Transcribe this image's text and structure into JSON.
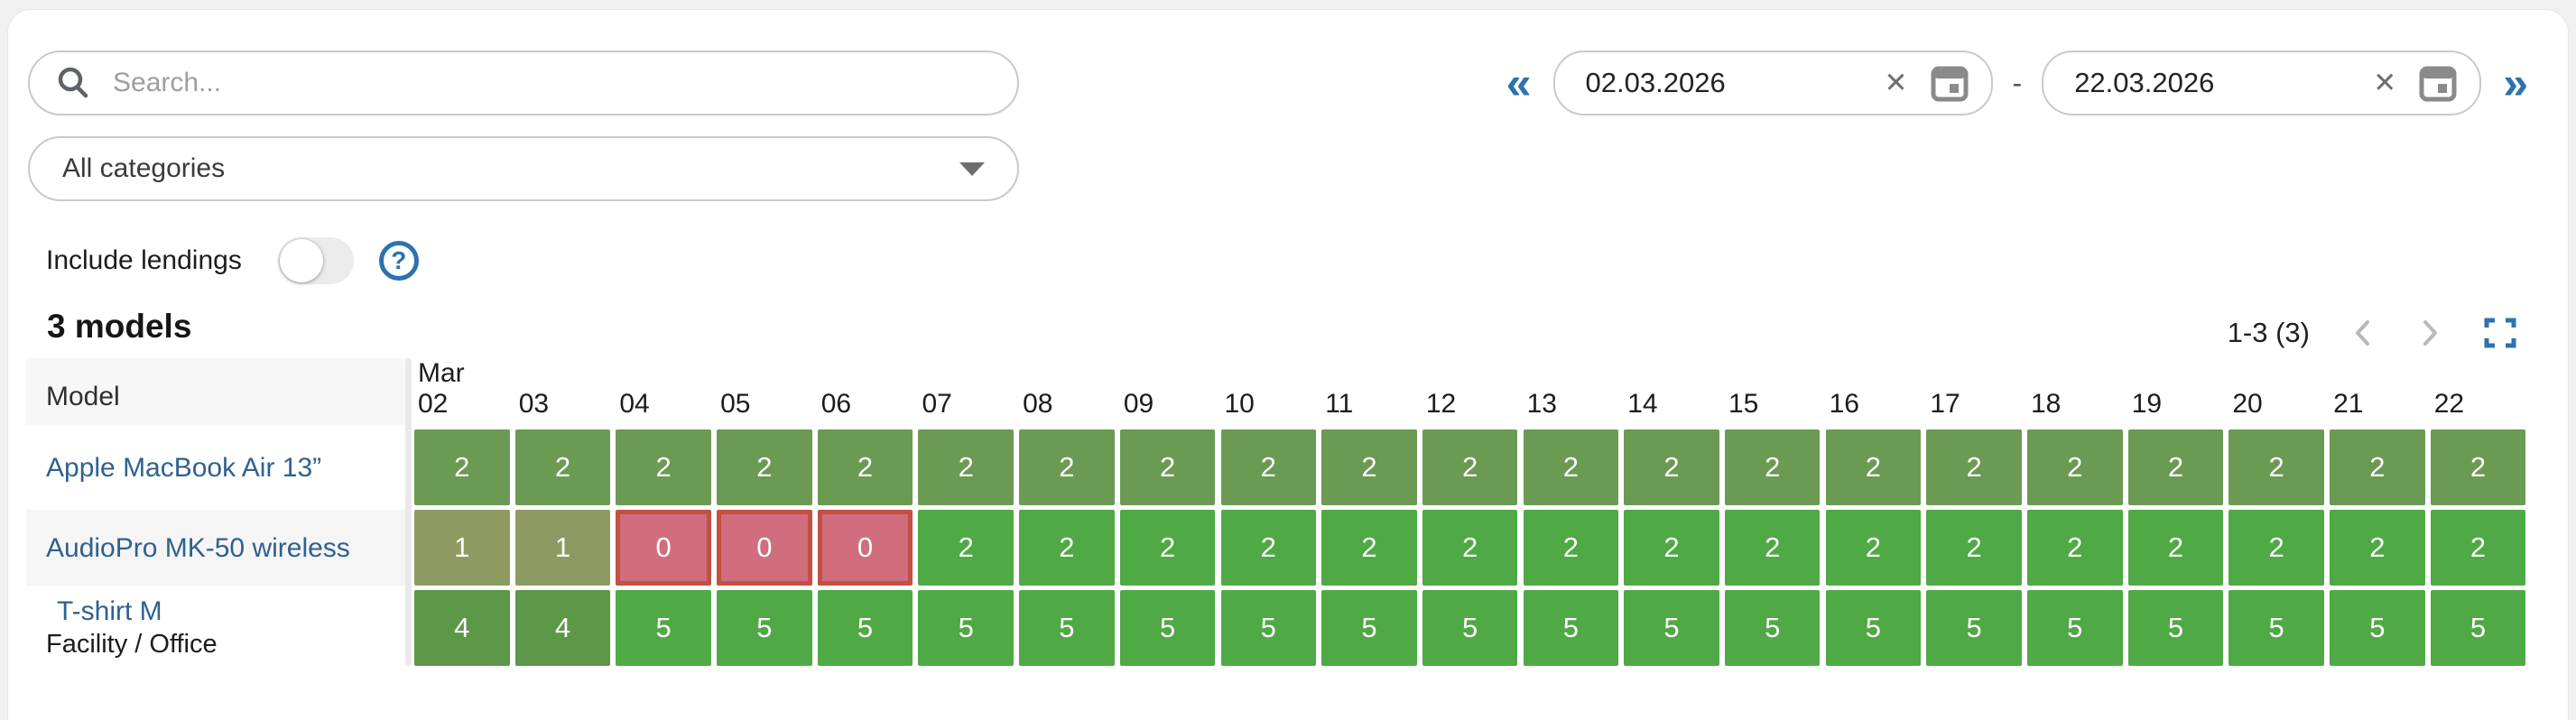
{
  "search": {
    "placeholder": "Search..."
  },
  "date_range": {
    "prev_label": "«",
    "next_label": "»",
    "separator": "-",
    "start": {
      "value": "02.03.2026",
      "clear_icon": "✕"
    },
    "end": {
      "value": "22.03.2026",
      "clear_icon": "✕"
    }
  },
  "category_filter": {
    "value": "All categories"
  },
  "lendings": {
    "label": "Include lendings",
    "toggle_state": "off",
    "help_icon": "?"
  },
  "summary": {
    "count_label": "3 models"
  },
  "pagination": {
    "range_label": "1-3 (3)"
  },
  "colors": {
    "accent_blue": "#2d72ad",
    "link_blue": "#2e618f",
    "cell_full": "#4fa945",
    "cell_high": "#5d9748",
    "cell_mid": "#6b9a53",
    "cell_low": "#8d9b63",
    "cell_zero_bg": "#d06e7e",
    "cell_zero_border": "#c25043"
  },
  "table": {
    "model_column_header": "Model",
    "month_label": "Mar",
    "days": [
      "02",
      "03",
      "04",
      "05",
      "06",
      "07",
      "08",
      "09",
      "10",
      "11",
      "12",
      "13",
      "14",
      "15",
      "16",
      "17",
      "18",
      "19",
      "20",
      "21",
      "22"
    ],
    "rows": [
      {
        "name": "Apple MacBook Air 13”",
        "category": "",
        "cells": [
          {
            "value": "2",
            "level": "mid"
          },
          {
            "value": "2",
            "level": "mid"
          },
          {
            "value": "2",
            "level": "mid"
          },
          {
            "value": "2",
            "level": "mid"
          },
          {
            "value": "2",
            "level": "mid"
          },
          {
            "value": "2",
            "level": "mid"
          },
          {
            "value": "2",
            "level": "mid"
          },
          {
            "value": "2",
            "level": "mid"
          },
          {
            "value": "2",
            "level": "mid"
          },
          {
            "value": "2",
            "level": "mid"
          },
          {
            "value": "2",
            "level": "mid"
          },
          {
            "value": "2",
            "level": "mid"
          },
          {
            "value": "2",
            "level": "mid"
          },
          {
            "value": "2",
            "level": "mid"
          },
          {
            "value": "2",
            "level": "mid"
          },
          {
            "value": "2",
            "level": "mid"
          },
          {
            "value": "2",
            "level": "mid"
          },
          {
            "value": "2",
            "level": "mid"
          },
          {
            "value": "2",
            "level": "mid"
          },
          {
            "value": "2",
            "level": "mid"
          },
          {
            "value": "2",
            "level": "mid"
          }
        ]
      },
      {
        "name": "AudioPro MK-50 wireless",
        "category": "",
        "cells": [
          {
            "value": "1",
            "level": "low"
          },
          {
            "value": "1",
            "level": "low"
          },
          {
            "value": "0",
            "level": "zero"
          },
          {
            "value": "0",
            "level": "zero"
          },
          {
            "value": "0",
            "level": "zero"
          },
          {
            "value": "2",
            "level": "full"
          },
          {
            "value": "2",
            "level": "full"
          },
          {
            "value": "2",
            "level": "full"
          },
          {
            "value": "2",
            "level": "full"
          },
          {
            "value": "2",
            "level": "full"
          },
          {
            "value": "2",
            "level": "full"
          },
          {
            "value": "2",
            "level": "full"
          },
          {
            "value": "2",
            "level": "full"
          },
          {
            "value": "2",
            "level": "full"
          },
          {
            "value": "2",
            "level": "full"
          },
          {
            "value": "2",
            "level": "full"
          },
          {
            "value": "2",
            "level": "full"
          },
          {
            "value": "2",
            "level": "full"
          },
          {
            "value": "2",
            "level": "full"
          },
          {
            "value": "2",
            "level": "full"
          },
          {
            "value": "2",
            "level": "full"
          }
        ]
      },
      {
        "name": "T-shirt M",
        "category": "Facility / Office",
        "cells": [
          {
            "value": "4",
            "level": "high"
          },
          {
            "value": "4",
            "level": "high"
          },
          {
            "value": "5",
            "level": "full"
          },
          {
            "value": "5",
            "level": "full"
          },
          {
            "value": "5",
            "level": "full"
          },
          {
            "value": "5",
            "level": "full"
          },
          {
            "value": "5",
            "level": "full"
          },
          {
            "value": "5",
            "level": "full"
          },
          {
            "value": "5",
            "level": "full"
          },
          {
            "value": "5",
            "level": "full"
          },
          {
            "value": "5",
            "level": "full"
          },
          {
            "value": "5",
            "level": "full"
          },
          {
            "value": "5",
            "level": "full"
          },
          {
            "value": "5",
            "level": "full"
          },
          {
            "value": "5",
            "level": "full"
          },
          {
            "value": "5",
            "level": "full"
          },
          {
            "value": "5",
            "level": "full"
          },
          {
            "value": "5",
            "level": "full"
          },
          {
            "value": "5",
            "level": "full"
          },
          {
            "value": "5",
            "level": "full"
          },
          {
            "value": "5",
            "level": "full"
          }
        ]
      }
    ]
  }
}
